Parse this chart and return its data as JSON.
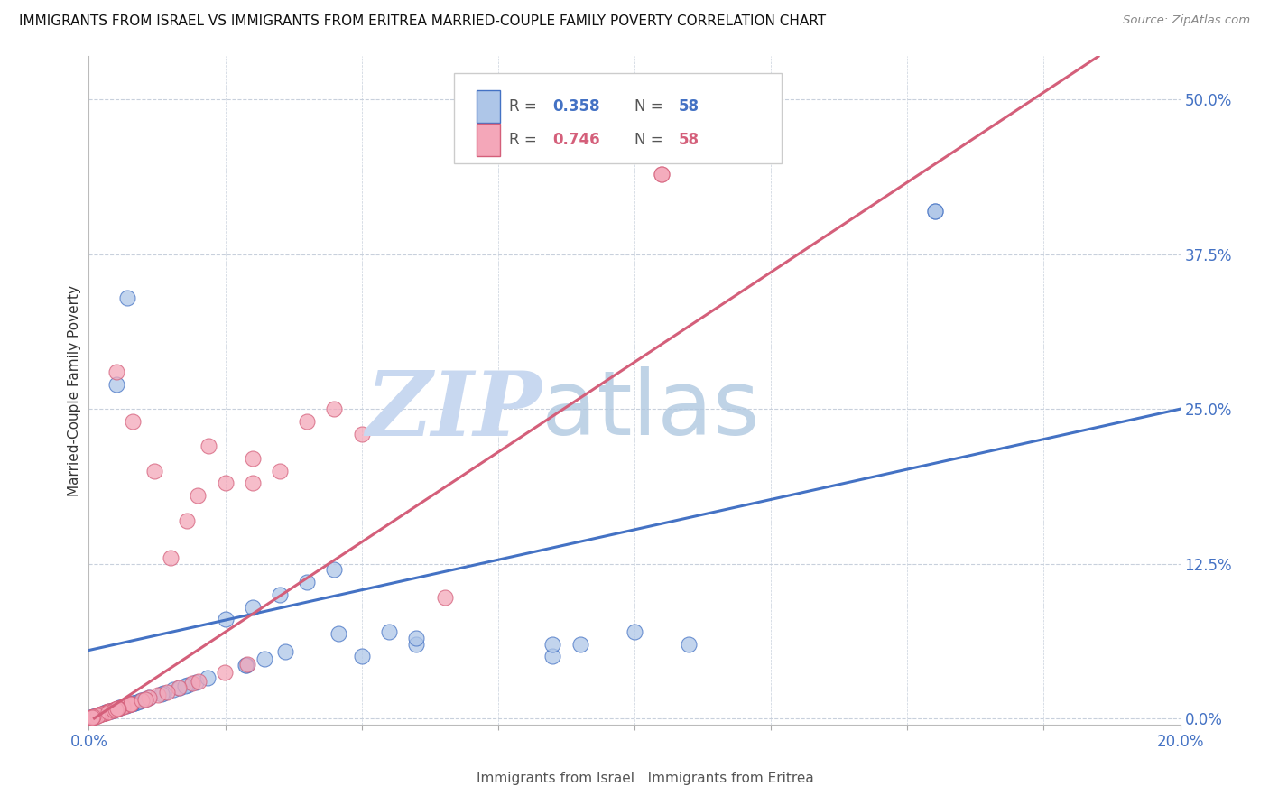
{
  "title": "IMMIGRANTS FROM ISRAEL VS IMMIGRANTS FROM ERITREA MARRIED-COUPLE FAMILY POVERTY CORRELATION CHART",
  "source": "Source: ZipAtlas.com",
  "ylabel": "Married-Couple Family Poverty",
  "ytick_labels": [
    "0.0%",
    "12.5%",
    "25.0%",
    "37.5%",
    "50.0%"
  ],
  "ytick_values": [
    0.0,
    0.125,
    0.25,
    0.375,
    0.5
  ],
  "xlim": [
    0.0,
    0.2
  ],
  "ylim": [
    -0.005,
    0.535
  ],
  "israel_R": 0.358,
  "israel_N": 58,
  "eritrea_R": 0.746,
  "eritrea_N": 58,
  "israel_color": "#aec6e8",
  "israel_line_color": "#4472c4",
  "eritrea_color": "#f4a7b9",
  "eritrea_line_color": "#d45f7a",
  "watermark_zip_color": "#c8d8f0",
  "watermark_atlas_color": "#b0c8e0",
  "legend_box_color": "#e8e8e8",
  "israel_line_y0": 0.055,
  "israel_line_y1": 0.25,
  "eritrea_line_x0": 0.001,
  "eritrea_line_y0": 0.0,
  "eritrea_line_x1": 0.185,
  "eritrea_line_y1": 0.535
}
